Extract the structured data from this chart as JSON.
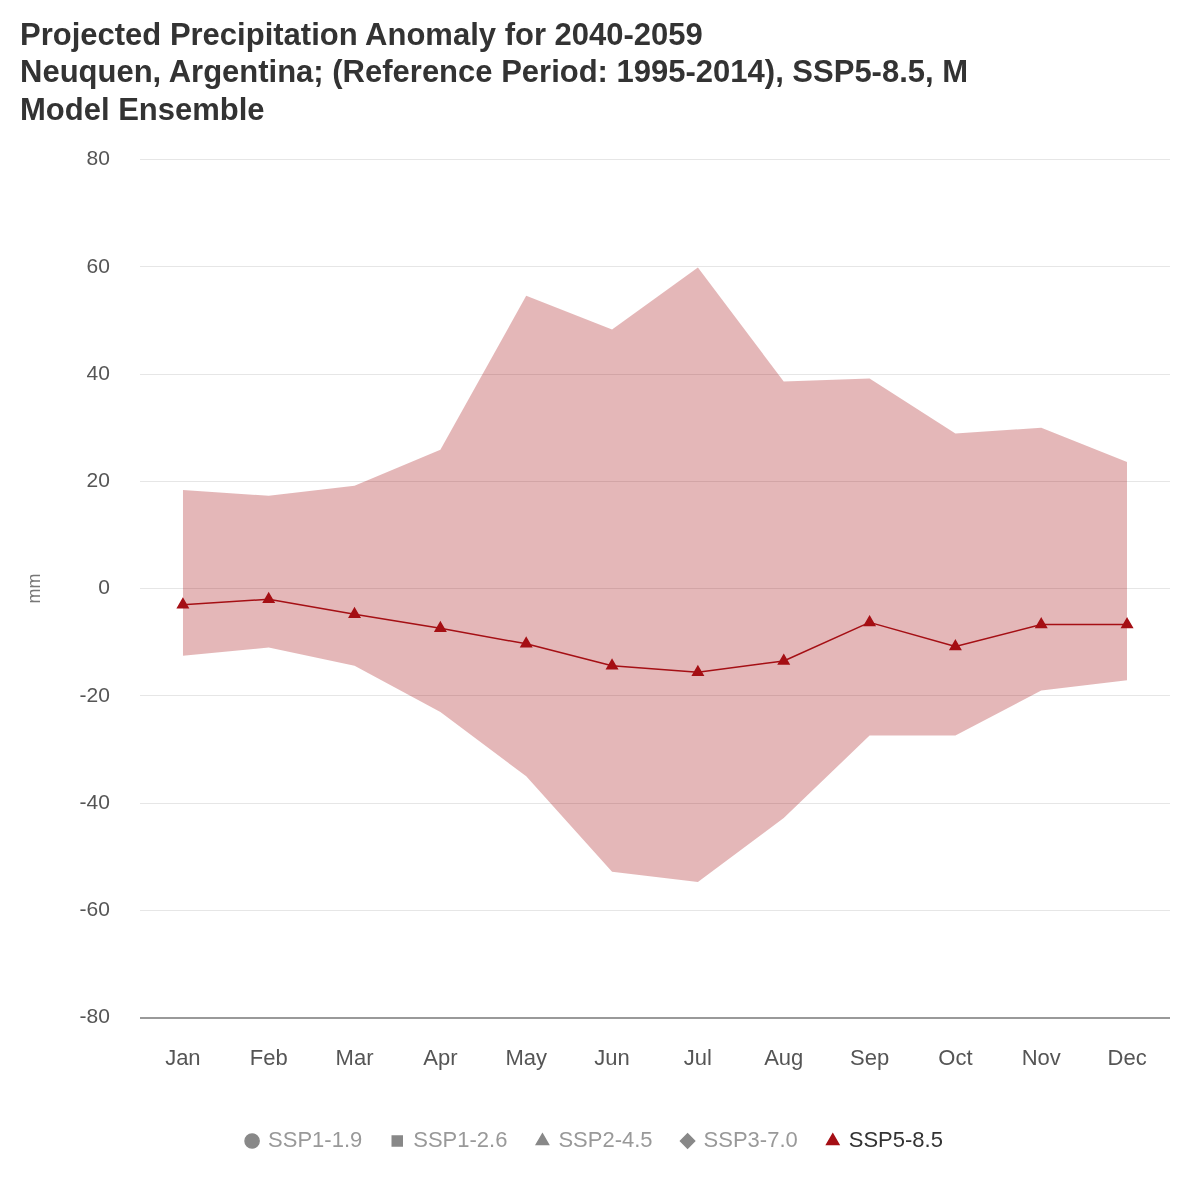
{
  "chart_data": {
    "type": "line",
    "title": "Projected Precipitation Anomaly for 2040-2059\nNeuquen, Argentina; (Reference Period: 1995-2014), SSP5-8.5, M\nModel Ensemble",
    "ylabel": "mm",
    "categories": [
      "Jan",
      "Feb",
      "Mar",
      "Apr",
      "May",
      "Jun",
      "Jul",
      "Aug",
      "Sep",
      "Oct",
      "Nov",
      "Dec"
    ],
    "series": [
      {
        "name": "SSP1-1.9",
        "color": "#888888",
        "marker": "circle",
        "values": [
          null,
          null,
          null,
          null,
          null,
          null,
          null,
          null,
          null,
          null,
          null,
          null
        ]
      },
      {
        "name": "SSP1-2.6",
        "color": "#888888",
        "marker": "square",
        "values": [
          null,
          null,
          null,
          null,
          null,
          null,
          null,
          null,
          null,
          null,
          null,
          null
        ]
      },
      {
        "name": "SSP2-4.5",
        "color": "#888888",
        "marker": "triangle",
        "values": [
          null,
          null,
          null,
          null,
          null,
          null,
          null,
          null,
          null,
          null,
          null,
          null
        ]
      },
      {
        "name": "SSP3-7.0",
        "color": "#888888",
        "marker": "diamond",
        "values": [
          null,
          null,
          null,
          null,
          null,
          null,
          null,
          null,
          null,
          null,
          null,
          null
        ]
      },
      {
        "name": "SSP5-8.5",
        "color": "#a50f15",
        "marker": "triangle",
        "values": [
          -3,
          -2,
          -4.8,
          -7.4,
          -10.3,
          -14.4,
          -15.6,
          -13.5,
          -6.3,
          -10.8,
          -6.7,
          -6.7
        ],
        "lower": [
          -12.5,
          -11,
          -14.4,
          -23,
          -35,
          -52.8,
          -54.7,
          -42.8,
          -27.4,
          -27.4,
          -19,
          -17.1
        ],
        "upper": [
          18.4,
          17.3,
          19.2,
          25.9,
          54.6,
          48.3,
          59.9,
          38.6,
          39.2,
          28.9,
          30,
          23.6
        ]
      }
    ],
    "ylim": [
      -80,
      80
    ],
    "yticks": [
      -80,
      -60,
      -40,
      -20,
      0,
      20,
      40,
      60,
      80
    ],
    "grid": "y",
    "legend": "bottom",
    "line_style": "solid"
  }
}
